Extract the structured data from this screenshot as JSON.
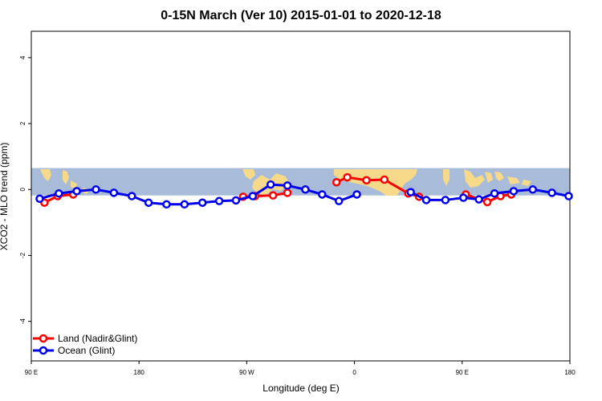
{
  "chart_data": {
    "type": "line",
    "title": "0-15N March (Ver 10)   2015-01-01 to 2020-12-18",
    "xlabel": "Longitude (deg E)",
    "ylabel": "XCO2 - MLO trend (ppm)",
    "xlim": [
      90,
      540
    ],
    "ylim": [
      -5.2,
      4.8
    ],
    "x_ticks": [
      {
        "value": 90,
        "label": "90 E"
      },
      {
        "value": 180,
        "label": "180"
      },
      {
        "value": 270,
        "label": "90 W"
      },
      {
        "value": 360,
        "label": "0"
      },
      {
        "value": 450,
        "label": "90 E"
      },
      {
        "value": 540,
        "label": "180"
      }
    ],
    "y_ticks": [
      {
        "value": -4,
        "label": "-4"
      },
      {
        "value": -2,
        "label": "-2"
      },
      {
        "value": 0,
        "label": "0"
      },
      {
        "value": 2,
        "label": "2"
      },
      {
        "value": 4,
        "label": "4"
      }
    ],
    "latitude_band": {
      "ymin": -0.18,
      "ymax": 0.65,
      "ocean_color": "#a8bcd9",
      "land_color": "#f7d98a"
    },
    "series": [
      {
        "name": "Land (Nadir&Glint)",
        "color": "#ff0000",
        "segments": [
          [
            [
              101,
              -0.4
            ],
            [
              112,
              -0.2
            ],
            [
              125,
              -0.15
            ]
          ],
          [
            [
              267,
              -0.22
            ],
            [
              277,
              -0.2
            ],
            [
              292,
              -0.18
            ],
            [
              304,
              -0.1
            ]
          ],
          [
            [
              345,
              0.22
            ],
            [
              354,
              0.37
            ],
            [
              370,
              0.28
            ],
            [
              385,
              0.3
            ],
            [
              405,
              -0.12
            ],
            [
              414,
              -0.22
            ]
          ],
          [
            [
              453,
              -0.15
            ],
            [
              471,
              -0.38
            ],
            [
              482,
              -0.2
            ],
            [
              491,
              -0.15
            ]
          ]
        ]
      },
      {
        "name": "Ocean (Glint)",
        "color": "#0000ee",
        "segments": [
          [
            [
              97,
              -0.28
            ],
            [
              113,
              -0.12
            ],
            [
              128,
              -0.05
            ],
            [
              144,
              0.0
            ],
            [
              159,
              -0.1
            ],
            [
              174,
              -0.2
            ],
            [
              188,
              -0.4
            ],
            [
              203,
              -0.45
            ],
            [
              218,
              -0.45
            ],
            [
              233,
              -0.4
            ],
            [
              247,
              -0.35
            ],
            [
              261,
              -0.33
            ],
            [
              275,
              -0.2
            ],
            [
              290,
              0.15
            ],
            [
              304,
              0.12
            ],
            [
              319,
              0.0
            ],
            [
              333,
              -0.15
            ],
            [
              347,
              -0.35
            ],
            [
              362,
              -0.15
            ]
          ],
          [
            [
              407,
              -0.08
            ],
            [
              420,
              -0.32
            ],
            [
              436,
              -0.32
            ],
            [
              451,
              -0.25
            ],
            [
              464,
              -0.3
            ],
            [
              477,
              -0.12
            ],
            [
              493,
              -0.05
            ],
            [
              509,
              0.0
            ],
            [
              525,
              -0.1
            ],
            [
              539,
              -0.2
            ]
          ]
        ]
      }
    ],
    "legend": {
      "position": "bottom-left"
    }
  }
}
